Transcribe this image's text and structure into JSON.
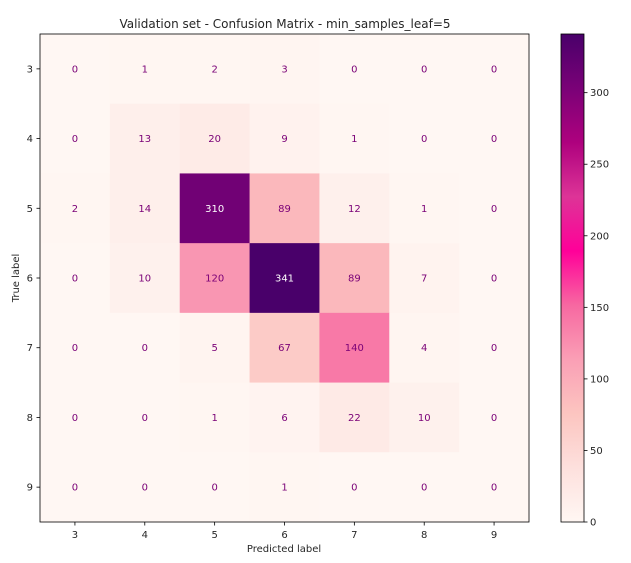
{
  "chart_data": {
    "type": "heatmap",
    "title": "Validation set - Confusion Matrix - min_samples_leaf=5",
    "xlabel": "Predicted label",
    "ylabel": "True label",
    "x_categories": [
      "3",
      "4",
      "5",
      "6",
      "7",
      "8",
      "9"
    ],
    "y_categories": [
      "3",
      "4",
      "5",
      "6",
      "7",
      "8",
      "9"
    ],
    "matrix": [
      [
        0,
        1,
        2,
        3,
        0,
        0,
        0
      ],
      [
        0,
        13,
        20,
        9,
        1,
        0,
        0
      ],
      [
        2,
        14,
        310,
        89,
        12,
        1,
        0
      ],
      [
        0,
        10,
        120,
        341,
        89,
        7,
        0
      ],
      [
        0,
        0,
        5,
        67,
        140,
        4,
        0
      ],
      [
        0,
        0,
        1,
        6,
        22,
        10,
        0
      ],
      [
        0,
        0,
        0,
        1,
        0,
        0,
        0
      ]
    ],
    "colormap": "RdPu",
    "colormap_stops": [
      "#fff7f3",
      "#fde0dd",
      "#fcc5c0",
      "#fa9fb5",
      "#f768a1",
      "#ff0099",
      "#dd3497",
      "#ae017e",
      "#7a0177",
      "#49006a"
    ],
    "text_color_low": "#7a0177",
    "text_color_high": "#ffffff",
    "colorbar_range": [
      0,
      341
    ],
    "colorbar_ticks": [
      "0",
      "50",
      "100",
      "150",
      "200",
      "250",
      "300"
    ],
    "colorbar_tick_values": [
      0,
      50,
      100,
      150,
      200,
      250,
      300
    ]
  }
}
